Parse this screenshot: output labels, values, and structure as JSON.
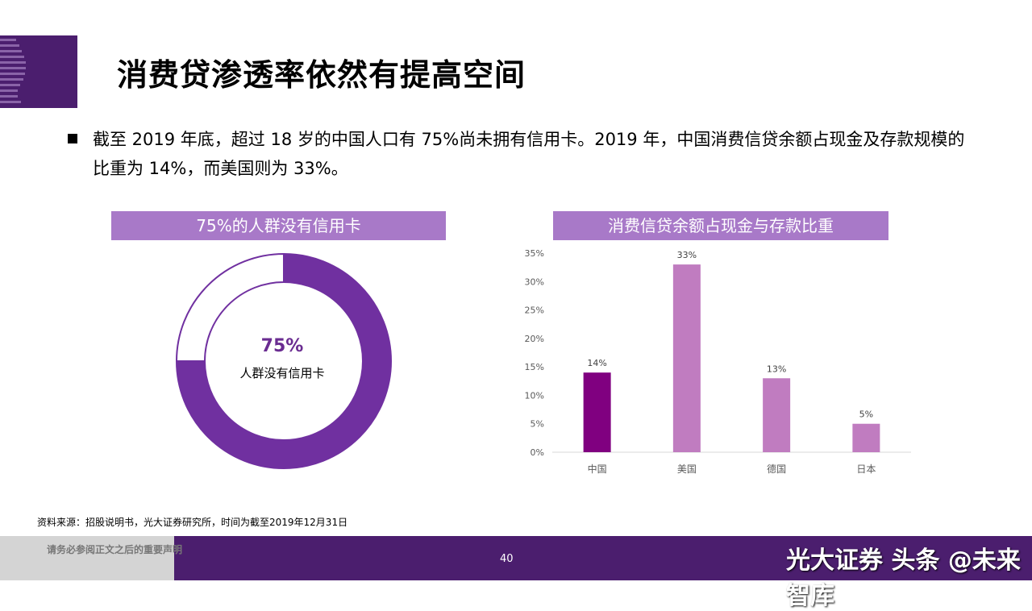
{
  "title": "消费贷渗透率依然有提高空间",
  "bullet_text": "截至 2019 年底，超过 18 岁的中国人口有 75%尚未拥有信用卡。2019 年，中国消费信贷余额占现金及存款规模的比重为 14%，而美国则为 33%。",
  "left_panel": {
    "header": "75%的人群没有信用卡",
    "center_value": "75%",
    "center_label": "人群没有信用卡"
  },
  "right_panel": {
    "header": "消费信贷余额占现金与存款比重"
  },
  "source": "资料来源：招股说明书，光大证券研究所，时间为截至2019年12月31日",
  "footer": {
    "disclaimer": "请务必参阅正文之后的重要声明",
    "page": "40",
    "watermark": "光大证券 头条 @未来智库"
  },
  "colors": {
    "brand": "#4b1e6e",
    "donut": "#7030a0",
    "header": "#a879c8",
    "highlight_bar": "#800080",
    "bar": "#c07cc0"
  },
  "chart_data": [
    {
      "type": "pie",
      "variant": "donut",
      "categories": [
        "没有信用卡",
        "有信用卡"
      ],
      "values": [
        75,
        25
      ],
      "title": "75%的人群没有信用卡"
    },
    {
      "type": "bar",
      "title": "消费信贷余额占现金与存款比重",
      "categories": [
        "中国",
        "美国",
        "德国",
        "日本"
      ],
      "values": [
        14,
        33,
        13,
        5
      ],
      "data_labels": [
        "14%",
        "33%",
        "13%",
        "5%"
      ],
      "ylim": [
        0,
        35
      ],
      "yticks": [
        "0%",
        "5%",
        "10%",
        "15%",
        "20%",
        "25%",
        "30%",
        "35%"
      ],
      "grid": false
    }
  ]
}
